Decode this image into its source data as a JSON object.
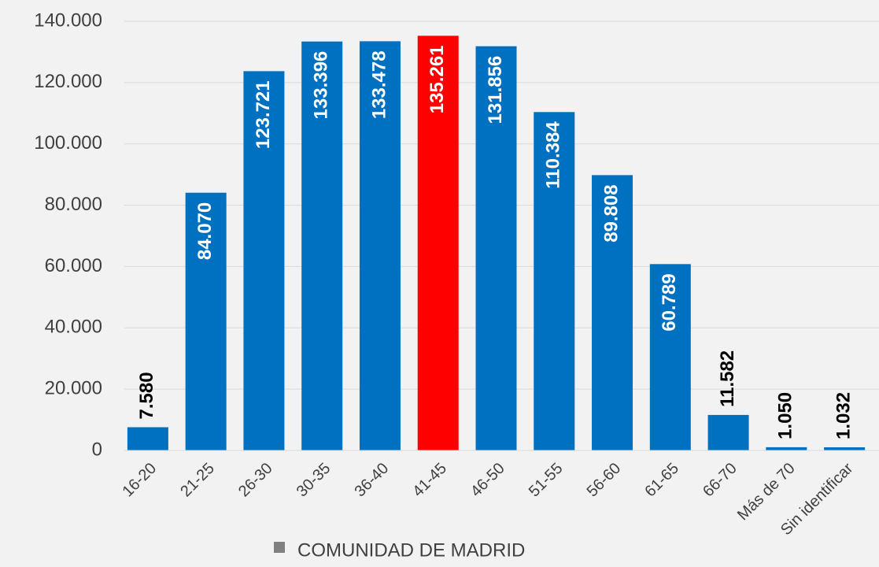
{
  "chart_data": {
    "type": "bar",
    "categories": [
      "16-20",
      "21-25",
      "26-30",
      "30-35",
      "36-40",
      "41-45",
      "46-50",
      "51-55",
      "56-60",
      "61-65",
      "66-70",
      "Más de 70",
      "Sin identificar"
    ],
    "series": [
      {
        "name": "COMUNIDAD DE MADRID",
        "color": "#808080",
        "colors": [
          "#0070c0",
          "#0070c0",
          "#0070c0",
          "#0070c0",
          "#0070c0",
          "#ff0000",
          "#0070c0",
          "#0070c0",
          "#0070c0",
          "#0070c0",
          "#0070c0",
          "#0070c0",
          "#0070c0"
        ],
        "values": [
          7580,
          84070,
          123721,
          133396,
          133478,
          135261,
          131856,
          110384,
          89808,
          60789,
          11582,
          1050,
          1032
        ],
        "value_labels": [
          "7.580",
          "84.070",
          "123.721",
          "133.396",
          "133.478",
          "135.261",
          "131.856",
          "110.384",
          "89.808",
          "60.789",
          "11.582",
          "1.050",
          "1.032"
        ]
      }
    ],
    "ylim": [
      0,
      140000
    ],
    "yticks": [
      0,
      {
        "value": 20000,
        "label": "20.000"
      },
      {
        "value": 40000,
        "label": "40.000"
      },
      {
        "value": 60000,
        "label": "60.000"
      },
      {
        "value": 80000,
        "label": "80.000"
      },
      {
        "value": 100000,
        "label": "100.000"
      },
      {
        "value": 120000,
        "label": "120.000"
      },
      {
        "value": 140000,
        "label": "140.000"
      }
    ],
    "grid": true,
    "legend": "bottom"
  }
}
